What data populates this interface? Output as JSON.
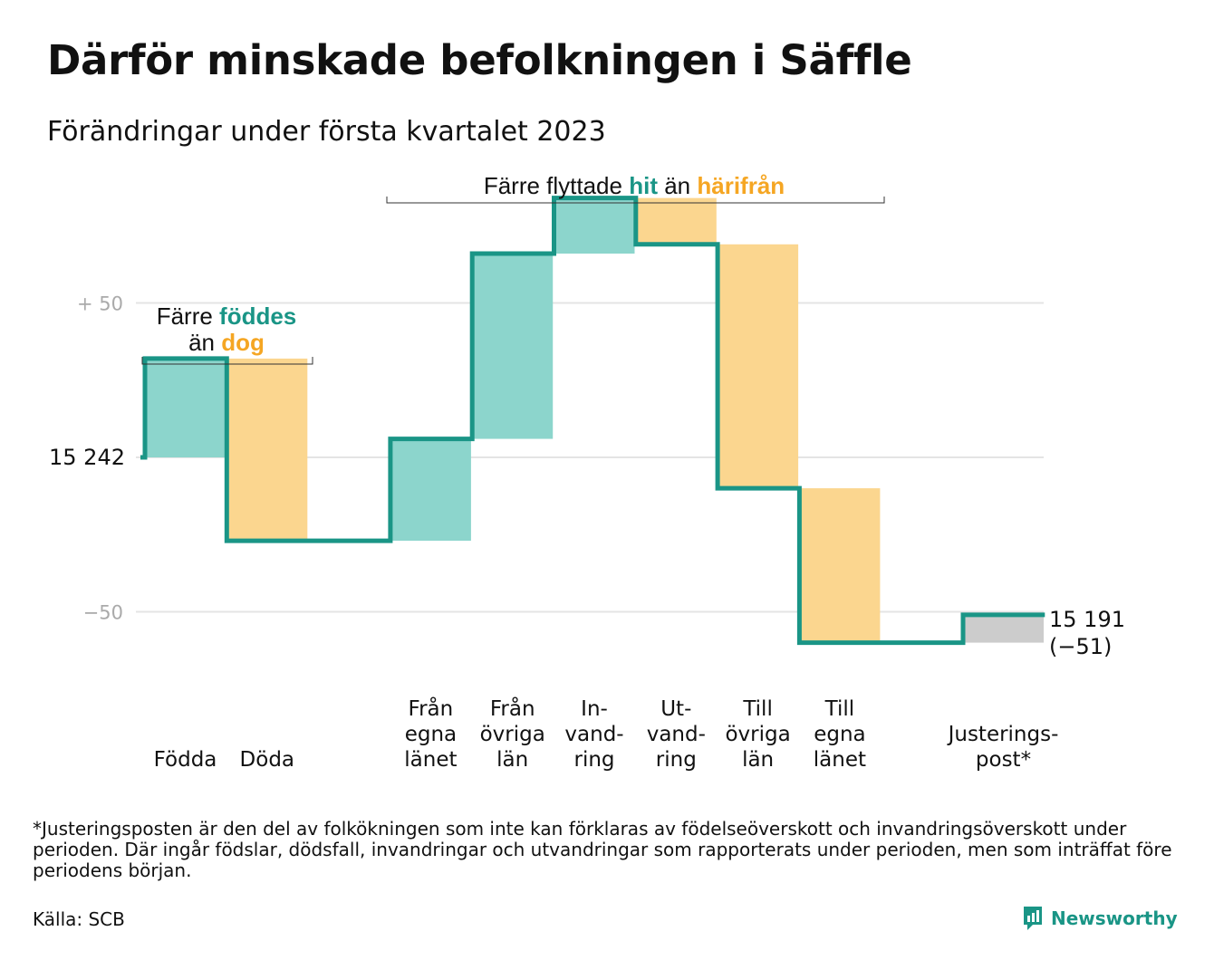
{
  "title": "Därför minskade befolkningen i Säffle",
  "subtitle": "Förändringar under första kvartalet 2023",
  "colors": {
    "increase": "#8cd5cc",
    "decrease": "#fbd68f",
    "adjustment": "#cccccc",
    "line": "#1a9586",
    "teal_text": "#1a9586",
    "orange_text": "#f5a623",
    "grid": "#e4e4e4"
  },
  "annotations": {
    "births": {
      "line1_prefix": "Färre ",
      "line1_highlight": "föddes",
      "line2_prefix": "än ",
      "line2_highlight": "dog"
    },
    "migration": {
      "prefix": "Färre flyttade ",
      "highlight1": "hit",
      "middle": " än ",
      "highlight2": "härifrån"
    }
  },
  "chart_data": {
    "type": "waterfall",
    "start_value": 15242,
    "start_label": "15 242",
    "end_value": 15191,
    "end_label": "15 191",
    "end_change_label": "(−51)",
    "ylim": [
      -61,
      88
    ],
    "y_ticks": [
      {
        "value": 50,
        "label": "+ 50"
      },
      {
        "value": 0,
        "label": "15 242"
      },
      {
        "value": -50,
        "label": "−50"
      }
    ],
    "grid": true,
    "steps": [
      {
        "label_lines": [
          "Födda"
        ],
        "delta": 32,
        "kind": "increase",
        "slot": 0
      },
      {
        "label_lines": [
          "Döda"
        ],
        "delta": -59,
        "kind": "decrease",
        "slot": 1
      },
      {
        "label_lines": [
          "Från",
          "egna",
          "länet"
        ],
        "delta": 33,
        "kind": "increase",
        "slot": 3
      },
      {
        "label_lines": [
          "Från",
          "övriga",
          "län"
        ],
        "delta": 60,
        "kind": "increase",
        "slot": 4
      },
      {
        "label_lines": [
          "In-",
          "vand-",
          "ring"
        ],
        "delta": 18,
        "kind": "increase",
        "slot": 5
      },
      {
        "label_lines": [
          "Ut-",
          "vand-",
          "ring"
        ],
        "delta": -15,
        "kind": "decrease",
        "slot": 6
      },
      {
        "label_lines": [
          "Till",
          "övriga",
          "län"
        ],
        "delta": -79,
        "kind": "decrease",
        "slot": 7
      },
      {
        "label_lines": [
          "Till",
          "egna",
          "länet"
        ],
        "delta": -50,
        "kind": "decrease",
        "slot": 8
      },
      {
        "label_lines": [
          "Justerings-",
          "post*"
        ],
        "delta": 9,
        "kind": "adjustment",
        "slot": 10
      }
    ]
  },
  "footnote": "*Justeringsposten är den del av folkökningen som inte kan förklaras av födelseöverskott och invandringsöverskott under perioden. Där ingår födslar, dödsfall, invandringar och utvandringar som rapporterats under perioden, men som inträffat före periodens början.",
  "source": "Källa: SCB",
  "brand": {
    "name": "Newsworthy",
    "icon": "newsworthy-logo-icon",
    "color": "#1a9586"
  }
}
